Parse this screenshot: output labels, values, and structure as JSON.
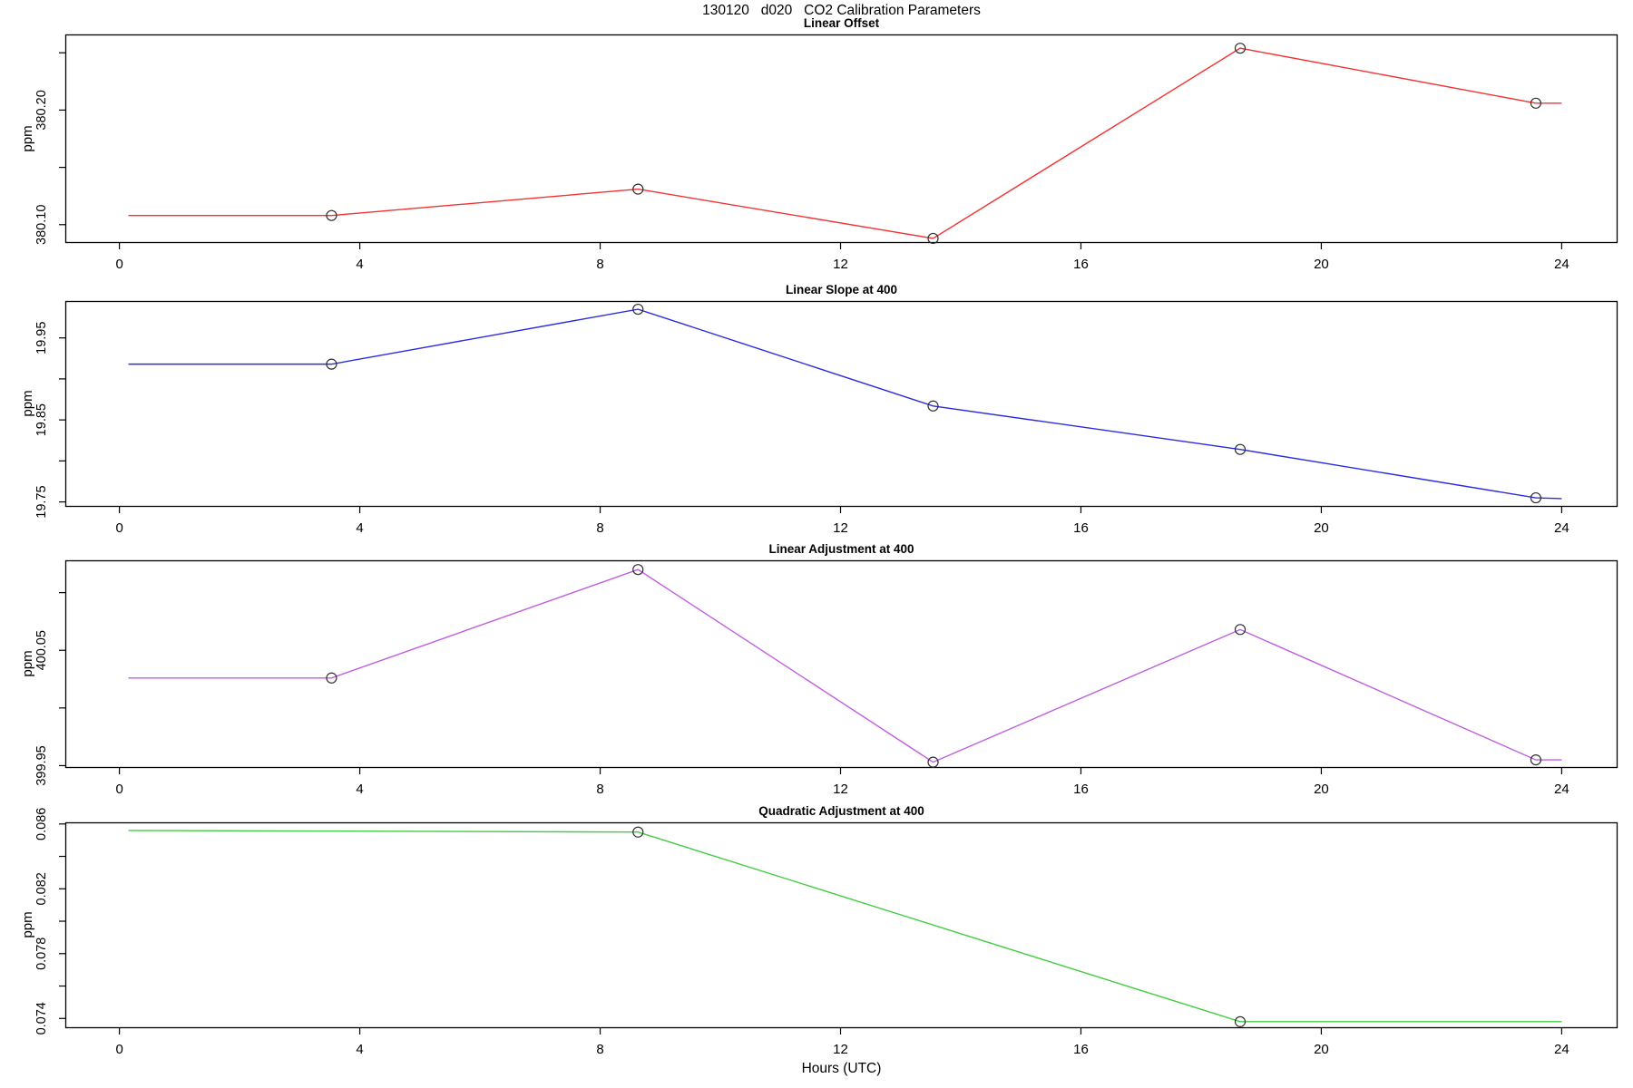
{
  "figure": {
    "title": "130120   d020   CO2 Calibration Parameters",
    "xlabel": "Hours (UTC)",
    "xlim": [
      -0.9,
      24.93
    ],
    "x_ticks": [
      {
        "value": 0,
        "label": "0"
      },
      {
        "value": 4,
        "label": "4"
      },
      {
        "value": 8,
        "label": "8"
      },
      {
        "value": 12,
        "label": "12"
      },
      {
        "value": 16,
        "label": "16"
      },
      {
        "value": 20,
        "label": "20"
      },
      {
        "value": 24,
        "label": "24"
      }
    ],
    "marker_style": "open-circle",
    "marker_color": "#303030",
    "axis_color": "#000000",
    "background_color": "#ffffff"
  },
  "chart_data": [
    {
      "type": "line",
      "title": "Linear Offset",
      "ylabel": "ppm",
      "color": "#f23333",
      "ylim": [
        380.084,
        380.266
      ],
      "y_ticks": [
        {
          "value": 380.1,
          "label": "380.10"
        },
        {
          "value": 380.15,
          "label": ""
        },
        {
          "value": 380.2,
          "label": "380.20"
        },
        {
          "value": 380.25,
          "label": ""
        }
      ],
      "points": {
        "x": [
          0.15,
          3.53,
          8.63,
          13.54,
          18.65,
          23.57,
          24.0
        ],
        "y": [
          380.108,
          380.108,
          380.131,
          380.088,
          380.254,
          380.206,
          380.206
        ]
      },
      "marker_point_indices": [
        1,
        2,
        3,
        4,
        5
      ]
    },
    {
      "type": "line",
      "title": "Linear Slope at 400",
      "ylabel": "ppm",
      "color": "#2b2be0",
      "ylim": [
        19.744,
        19.995
      ],
      "y_ticks": [
        {
          "value": 19.75,
          "label": "19.75"
        },
        {
          "value": 19.8,
          "label": ""
        },
        {
          "value": 19.85,
          "label": "19.85"
        },
        {
          "value": 19.9,
          "label": ""
        },
        {
          "value": 19.95,
          "label": "19.95"
        }
      ],
      "points": {
        "x": [
          0.15,
          3.53,
          8.63,
          13.54,
          18.65,
          23.57,
          24.0
        ],
        "y": [
          19.918,
          19.918,
          19.985,
          19.867,
          19.814,
          19.755,
          19.754
        ]
      },
      "marker_point_indices": [
        1,
        2,
        3,
        4,
        5
      ]
    },
    {
      "type": "line",
      "title": "Linear Adjustment at 400",
      "ylabel": "ppm",
      "color": "#bf5fe0",
      "ylim": [
        399.948,
        400.128
      ],
      "y_ticks": [
        {
          "value": 399.95,
          "label": "399.95"
        },
        {
          "value": 400.0,
          "label": ""
        },
        {
          "value": 400.05,
          "label": "400.05"
        },
        {
          "value": 400.1,
          "label": ""
        }
      ],
      "points": {
        "x": [
          0.15,
          3.53,
          8.63,
          13.54,
          18.65,
          23.57,
          24.0
        ],
        "y": [
          400.026,
          400.026,
          400.12,
          399.953,
          400.068,
          399.955,
          399.955
        ]
      },
      "marker_point_indices": [
        1,
        2,
        3,
        4,
        5
      ]
    },
    {
      "type": "line",
      "title": "Quadratic Adjustment at 400",
      "ylabel": "ppm",
      "color": "#44cc44",
      "ylim": [
        0.0734,
        0.0861
      ],
      "y_ticks": [
        {
          "value": 0.074,
          "label": "0.074"
        },
        {
          "value": 0.076,
          "label": ""
        },
        {
          "value": 0.078,
          "label": "0.078"
        },
        {
          "value": 0.08,
          "label": ""
        },
        {
          "value": 0.082,
          "label": "0.082"
        },
        {
          "value": 0.084,
          "label": ""
        },
        {
          "value": 0.086,
          "label": "0.086"
        }
      ],
      "points": {
        "x": [
          0.15,
          8.63,
          18.65,
          24.0
        ],
        "y": [
          0.0856,
          0.0855,
          0.0738,
          0.0738
        ]
      },
      "marker_point_indices": [
        1,
        2
      ]
    }
  ]
}
